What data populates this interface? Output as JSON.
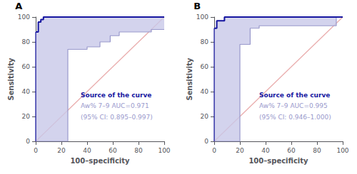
{
  "chart_data": [
    {
      "type": "line",
      "label": "A",
      "xlabel": "100–specificity",
      "ylabel": "Sensitivity",
      "xlim": [
        0,
        100
      ],
      "ylim": [
        0,
        100
      ],
      "xticks": [
        0,
        20,
        40,
        60,
        80,
        100
      ],
      "yticks": [
        0,
        20,
        40,
        60,
        80,
        100
      ],
      "grid": false,
      "annotations": [
        {
          "text": "Source of the curve",
          "color": "#1515a0"
        },
        {
          "text": "Aw% 7–9 AUC=0.971",
          "color": "#9999cc"
        },
        {
          "text": "(95% CI: 0.895–0.997)",
          "color": "#9999cc"
        }
      ],
      "series": [
        {
          "type": "line",
          "color": "#e08888",
          "x": [
            0,
            100
          ],
          "values": [
            0,
            100
          ]
        },
        {
          "type": "band",
          "color": "#c8c8e8",
          "x_upper": [
            0,
            0,
            2,
            2,
            4,
            4,
            6,
            6,
            50,
            50,
            100
          ],
          "upper": [
            88,
            88,
            96,
            96,
            98,
            98,
            100,
            100,
            100,
            100,
            100
          ],
          "x_lower": [
            0,
            25,
            25,
            40,
            40,
            50,
            50,
            58,
            58,
            65,
            65,
            90,
            90,
            100
          ],
          "lower": [
            0,
            0,
            74,
            74,
            76,
            76,
            80,
            80,
            85,
            85,
            88,
            88,
            90,
            90
          ]
        },
        {
          "type": "step",
          "color": "#9999cc",
          "x": [
            0,
            0,
            2,
            2,
            4,
            4,
            6,
            6,
            50,
            50,
            100
          ],
          "values": [
            88,
            88,
            96,
            96,
            98,
            98,
            100,
            100,
            100,
            100,
            100
          ]
        },
        {
          "type": "step",
          "color": "#9999cc",
          "x": [
            0,
            25,
            25,
            40,
            40,
            50,
            50,
            58,
            58,
            65,
            65,
            90,
            90,
            100
          ],
          "values": [
            0,
            0,
            74,
            74,
            76,
            76,
            80,
            80,
            85,
            85,
            88,
            88,
            90,
            90
          ]
        },
        {
          "type": "step",
          "color": "#1515a0",
          "x": [
            0,
            0,
            2,
            2,
            4,
            4,
            6,
            6,
            50,
            50,
            100
          ],
          "values": [
            88,
            88,
            96,
            96,
            98,
            98,
            100,
            100,
            100,
            100,
            100
          ]
        },
        {
          "type": "line",
          "color": "#1515a0",
          "x": [
            0,
            0
          ],
          "values": [
            0,
            88
          ]
        }
      ]
    },
    {
      "type": "line",
      "label": "B",
      "xlabel": "100–specificity",
      "ylabel": "Sensitivity",
      "xlim": [
        0,
        100
      ],
      "ylim": [
        0,
        100
      ],
      "xticks": [
        0,
        20,
        40,
        60,
        80,
        100
      ],
      "yticks": [
        0,
        20,
        40,
        60,
        80,
        100
      ],
      "grid": false,
      "annotations": [
        {
          "text": "Source of the curve",
          "color": "#1515a0"
        },
        {
          "text": "Aw% 7–9 AUC=0.995",
          "color": "#9999cc"
        },
        {
          "text": "(95% CI: 0.946–1.000)",
          "color": "#9999cc"
        }
      ],
      "series": [
        {
          "type": "line",
          "color": "#e08888",
          "x": [
            0,
            100
          ],
          "values": [
            0,
            100
          ]
        },
        {
          "type": "band",
          "color": "#c8c8e8",
          "x_upper": [
            0,
            0,
            2,
            2,
            8,
            8,
            100
          ],
          "upper": [
            91,
            91,
            97,
            97,
            100,
            100,
            100
          ],
          "x_lower": [
            0,
            20,
            20,
            28,
            28,
            35,
            35,
            95,
            95,
            100
          ],
          "lower": [
            0,
            0,
            78,
            78,
            91,
            91,
            93,
            93,
            100,
            100
          ]
        },
        {
          "type": "step",
          "color": "#9999cc",
          "x": [
            0,
            0,
            2,
            2,
            8,
            8,
            100
          ],
          "values": [
            91,
            91,
            97,
            97,
            100,
            100,
            100
          ]
        },
        {
          "type": "step",
          "color": "#9999cc",
          "x": [
            0,
            20,
            20,
            28,
            28,
            35,
            35,
            95,
            95,
            100
          ],
          "values": [
            0,
            0,
            78,
            78,
            91,
            91,
            93,
            93,
            100,
            100
          ]
        },
        {
          "type": "step",
          "color": "#1515a0",
          "x": [
            0,
            0,
            2,
            2,
            8,
            8,
            100
          ],
          "values": [
            91,
            91,
            97,
            97,
            100,
            100,
            100
          ]
        },
        {
          "type": "line",
          "color": "#1515a0",
          "x": [
            0,
            0
          ],
          "values": [
            0,
            91
          ]
        }
      ]
    }
  ]
}
